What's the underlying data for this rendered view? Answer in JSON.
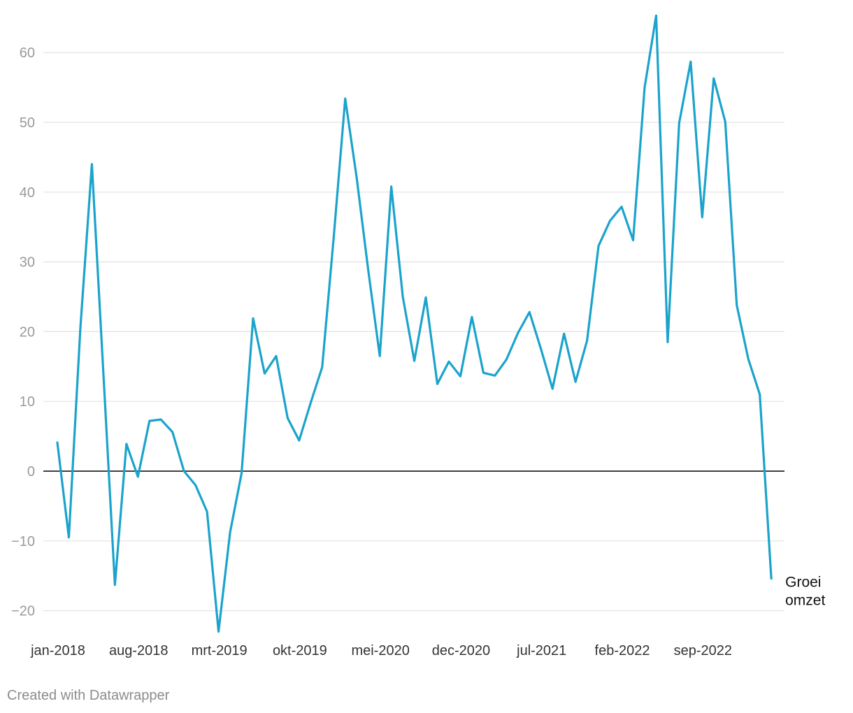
{
  "chart_data": {
    "type": "line",
    "title": "",
    "xlabel": "",
    "ylabel": "",
    "ylim": [
      -23,
      65
    ],
    "yticks": [
      -20,
      -10,
      0,
      10,
      20,
      30,
      40,
      50,
      60
    ],
    "ytick_labels": [
      "−20",
      "−10",
      "0",
      "10",
      "20",
      "30",
      "40",
      "50",
      "60"
    ],
    "grid": true,
    "x_tick_labels": [
      {
        "label": "jan-2018",
        "index": 0
      },
      {
        "label": "aug-2018",
        "index": 7
      },
      {
        "label": "mrt-2019",
        "index": 14
      },
      {
        "label": "okt-2019",
        "index": 21
      },
      {
        "label": "mei-2020",
        "index": 28
      },
      {
        "label": "dec-2020",
        "index": 35
      },
      {
        "label": "jul-2021",
        "index": 42
      },
      {
        "label": "feb-2022",
        "index": 49
      },
      {
        "label": "sep-2022",
        "index": 56
      }
    ],
    "series": [
      {
        "name": "Groei omzet",
        "label_lines": [
          "Groei",
          "omzet"
        ],
        "color": "#1ba3cc",
        "values": [
          4.1,
          -9.5,
          20.5,
          44.0,
          14.0,
          -16.3,
          3.9,
          -0.8,
          7.2,
          7.4,
          5.6,
          0.0,
          -2.0,
          -5.8,
          -23.0,
          -8.8,
          -0.3,
          21.9,
          14.0,
          16.5,
          7.6,
          4.4,
          9.8,
          14.9,
          33.5,
          53.4,
          42.0,
          28.8,
          16.5,
          40.8,
          25.0,
          15.8,
          24.9,
          12.5,
          15.7,
          13.6,
          22.1,
          14.1,
          13.7,
          16.0,
          19.8,
          22.8,
          17.5,
          11.8,
          19.7,
          12.8,
          18.7,
          32.3,
          35.9,
          37.9,
          33.1,
          55.0,
          65.3,
          18.5,
          49.9,
          58.7,
          36.4,
          56.3,
          50.1,
          23.8,
          16.1,
          11.0,
          -15.4
        ]
      }
    ]
  },
  "footer": {
    "credit": "Created with Datawrapper"
  }
}
